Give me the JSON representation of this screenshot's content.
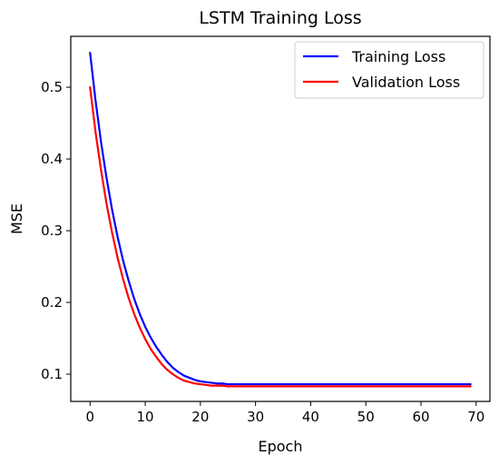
{
  "chart_data": {
    "type": "line",
    "title": "LSTM Training Loss",
    "xlabel": "Epoch",
    "ylabel": "MSE",
    "xlim": [
      -3.5,
      72.5
    ],
    "ylim": [
      0.062,
      0.571
    ],
    "xticks": [
      0,
      10,
      20,
      30,
      40,
      50,
      60,
      70
    ],
    "yticks": [
      0.1,
      0.2,
      0.3,
      0.4,
      0.5
    ],
    "xtick_labels": [
      "0",
      "10",
      "20",
      "30",
      "40",
      "50",
      "60",
      "70"
    ],
    "ytick_labels": [
      "0.1",
      "0.2",
      "0.3",
      "0.4",
      "0.5"
    ],
    "grid": false,
    "legend_position": "top-right",
    "x": [
      0,
      1,
      2,
      3,
      4,
      5,
      6,
      7,
      8,
      9,
      10,
      11,
      12,
      13,
      14,
      15,
      16,
      17,
      18,
      19,
      20,
      21,
      22,
      23,
      24,
      25,
      26,
      27,
      28,
      29,
      30,
      31,
      32,
      33,
      34,
      35,
      36,
      37,
      38,
      39,
      40,
      41,
      42,
      43,
      44,
      45,
      46,
      47,
      48,
      49,
      50,
      51,
      52,
      53,
      54,
      55,
      56,
      57,
      58,
      59,
      60,
      61,
      62,
      63,
      64,
      65,
      66,
      67,
      68,
      69
    ],
    "series": [
      {
        "name": "Training Loss",
        "color": "#0000ff",
        "values": [
          0.548,
          0.481,
          0.423,
          0.373,
          0.329,
          0.291,
          0.258,
          0.23,
          0.205,
          0.184,
          0.166,
          0.151,
          0.138,
          0.127,
          0.117,
          0.109,
          0.103,
          0.098,
          0.095,
          0.092,
          0.09,
          0.089,
          0.088,
          0.087,
          0.087,
          0.086,
          0.086,
          0.086,
          0.086,
          0.086,
          0.086,
          0.086,
          0.086,
          0.086,
          0.086,
          0.086,
          0.086,
          0.086,
          0.086,
          0.086,
          0.086,
          0.086,
          0.086,
          0.086,
          0.086,
          0.086,
          0.086,
          0.086,
          0.086,
          0.086,
          0.086,
          0.086,
          0.086,
          0.086,
          0.086,
          0.086,
          0.086,
          0.086,
          0.086,
          0.086,
          0.086,
          0.086,
          0.086,
          0.086,
          0.086,
          0.086,
          0.086,
          0.086,
          0.086,
          0.086
        ]
      },
      {
        "name": "Validation Loss",
        "color": "#ff0000",
        "values": [
          0.5,
          0.437,
          0.384,
          0.337,
          0.297,
          0.262,
          0.232,
          0.206,
          0.184,
          0.165,
          0.149,
          0.135,
          0.124,
          0.114,
          0.106,
          0.1,
          0.095,
          0.091,
          0.089,
          0.087,
          0.086,
          0.085,
          0.084,
          0.084,
          0.084,
          0.083,
          0.083,
          0.083,
          0.083,
          0.083,
          0.083,
          0.083,
          0.083,
          0.083,
          0.083,
          0.083,
          0.083,
          0.083,
          0.083,
          0.083,
          0.083,
          0.083,
          0.083,
          0.083,
          0.083,
          0.083,
          0.083,
          0.083,
          0.083,
          0.083,
          0.083,
          0.083,
          0.083,
          0.083,
          0.083,
          0.083,
          0.083,
          0.083,
          0.083,
          0.083,
          0.083,
          0.083,
          0.083,
          0.083,
          0.083,
          0.083,
          0.083,
          0.083,
          0.083,
          0.083
        ]
      }
    ]
  }
}
